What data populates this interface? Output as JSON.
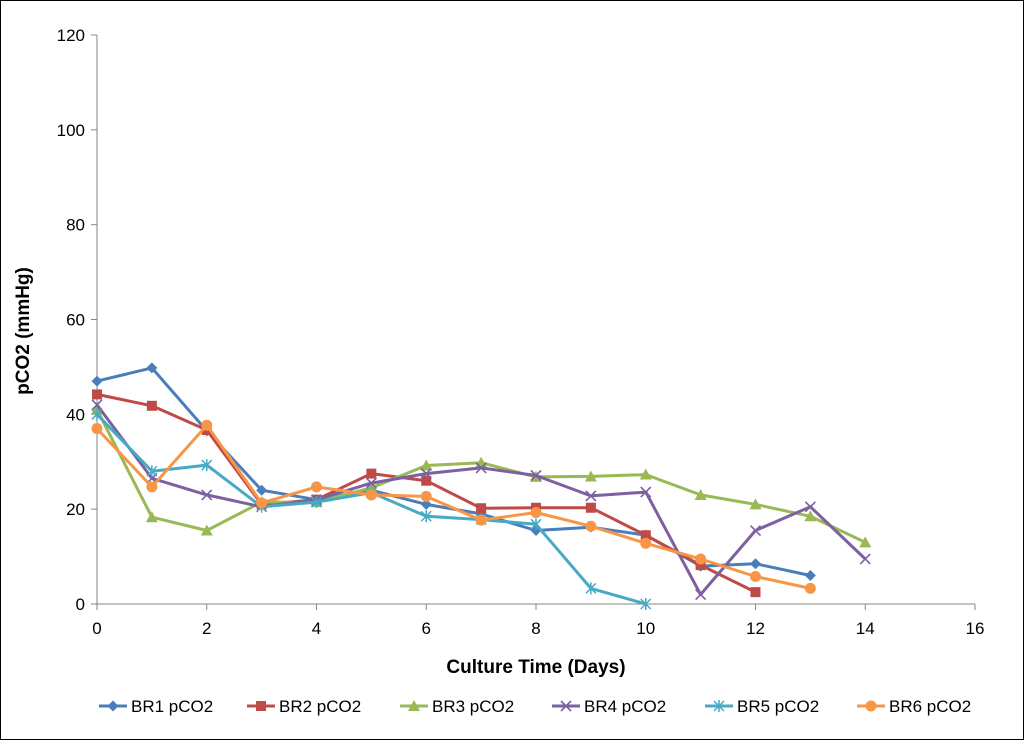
{
  "chart_data": {
    "type": "line",
    "title": "",
    "xlabel": "Culture Time (Days)",
    "ylabel": "pCO2 (mmHg)",
    "xlim": [
      0,
      16
    ],
    "ylim": [
      0,
      120
    ],
    "xticks": [
      "0",
      "2",
      "4",
      "6",
      "8",
      "10",
      "12",
      "14",
      "16"
    ],
    "yticks": [
      "0",
      "20",
      "40",
      "60",
      "80",
      "100",
      "120"
    ],
    "grid": false,
    "legend_position": "bottom",
    "series": [
      {
        "name": "BR1 pCO2",
        "color": "#4a7ebb",
        "marker": "diamond",
        "x": [
          0,
          1,
          2,
          3,
          4,
          5,
          6,
          7,
          8,
          9,
          10,
          11,
          12,
          13
        ],
        "y": [
          47,
          49.8,
          36.5,
          24,
          22,
          24,
          21,
          19,
          15.5,
          16.2,
          14.5,
          8,
          8.5,
          6
        ]
      },
      {
        "name": "BR2  pCO2",
        "color": "#be4b48",
        "marker": "square",
        "x": [
          0,
          1,
          2,
          3,
          4,
          5,
          6,
          7,
          8,
          9,
          10,
          11,
          12
        ],
        "y": [
          44.2,
          41.8,
          36.7,
          21,
          22,
          27.5,
          26,
          20.2,
          20.3,
          20.3,
          14.5,
          8.2,
          2.5
        ]
      },
      {
        "name": "BR3  pCO2",
        "color": "#98b954",
        "marker": "triangle",
        "x": [
          0,
          1,
          2,
          3,
          4,
          5,
          6,
          7,
          8,
          9,
          10,
          11,
          12,
          13,
          14
        ],
        "y": [
          41,
          18.3,
          15.5,
          21.5,
          21.5,
          24.5,
          29.2,
          29.8,
          26.8,
          26.9,
          27.3,
          23,
          21,
          18.5,
          13
        ]
      },
      {
        "name": "BR4  pCO2",
        "color": "#7d60a0",
        "marker": "x",
        "x": [
          0,
          1,
          2,
          3,
          4,
          5,
          6,
          7,
          8,
          9,
          10,
          11,
          12,
          13,
          14
        ],
        "y": [
          42,
          26.5,
          23,
          20.5,
          22,
          25.5,
          27.5,
          28.7,
          27.1,
          22.8,
          23.6,
          2,
          15.5,
          20.5,
          9.5
        ]
      },
      {
        "name": "BR5  pCO2",
        "color": "#46aac5",
        "marker": "star",
        "x": [
          0,
          1,
          2,
          3,
          4,
          5,
          6,
          7,
          8,
          9,
          10
        ],
        "y": [
          40,
          28,
          29.3,
          20.5,
          21.5,
          23.5,
          18.5,
          17.8,
          16.8,
          3.3,
          0
        ]
      },
      {
        "name": "BR6  pCO2",
        "color": "#f79646",
        "marker": "circle",
        "x": [
          0,
          1,
          2,
          3,
          4,
          5,
          6,
          7,
          8,
          9,
          10,
          11,
          12,
          13
        ],
        "y": [
          37,
          24.7,
          37.7,
          21.3,
          24.7,
          23,
          22.7,
          17.7,
          19.3,
          16.4,
          12.8,
          9.5,
          5.8,
          3.3
        ]
      }
    ]
  }
}
